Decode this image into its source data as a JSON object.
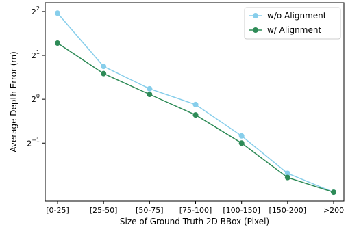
{
  "chart_data": {
    "type": "line",
    "categories": [
      "[0-25]",
      "[25-50]",
      "[50-75]",
      "[75-100]",
      "[100-150]",
      "[150-200]",
      ">200"
    ],
    "xlabel": "Size of Ground Truth 2D BBox (Pixel)",
    "ylabel": "Average Depth Error (m)",
    "yscale": "log2",
    "ylim": [
      0.2,
      4.6
    ],
    "yticks": [
      {
        "value": 0.5,
        "base": "2",
        "exp": "−1"
      },
      {
        "value": 1,
        "base": "2",
        "exp": "0"
      },
      {
        "value": 2,
        "base": "2",
        "exp": "1"
      },
      {
        "value": 4,
        "base": "2",
        "exp": "2"
      }
    ],
    "grid": false,
    "legend": "top-right",
    "series": [
      {
        "name": "w/o Alignment",
        "color": "#87CEEB",
        "values": [
          3.9,
          1.68,
          1.18,
          0.92,
          0.56,
          0.31,
          0.23
        ]
      },
      {
        "name": "w/ Alignment",
        "color": "#2E8B57",
        "values": [
          2.43,
          1.5,
          1.08,
          0.78,
          0.5,
          0.29,
          0.23
        ]
      }
    ]
  }
}
